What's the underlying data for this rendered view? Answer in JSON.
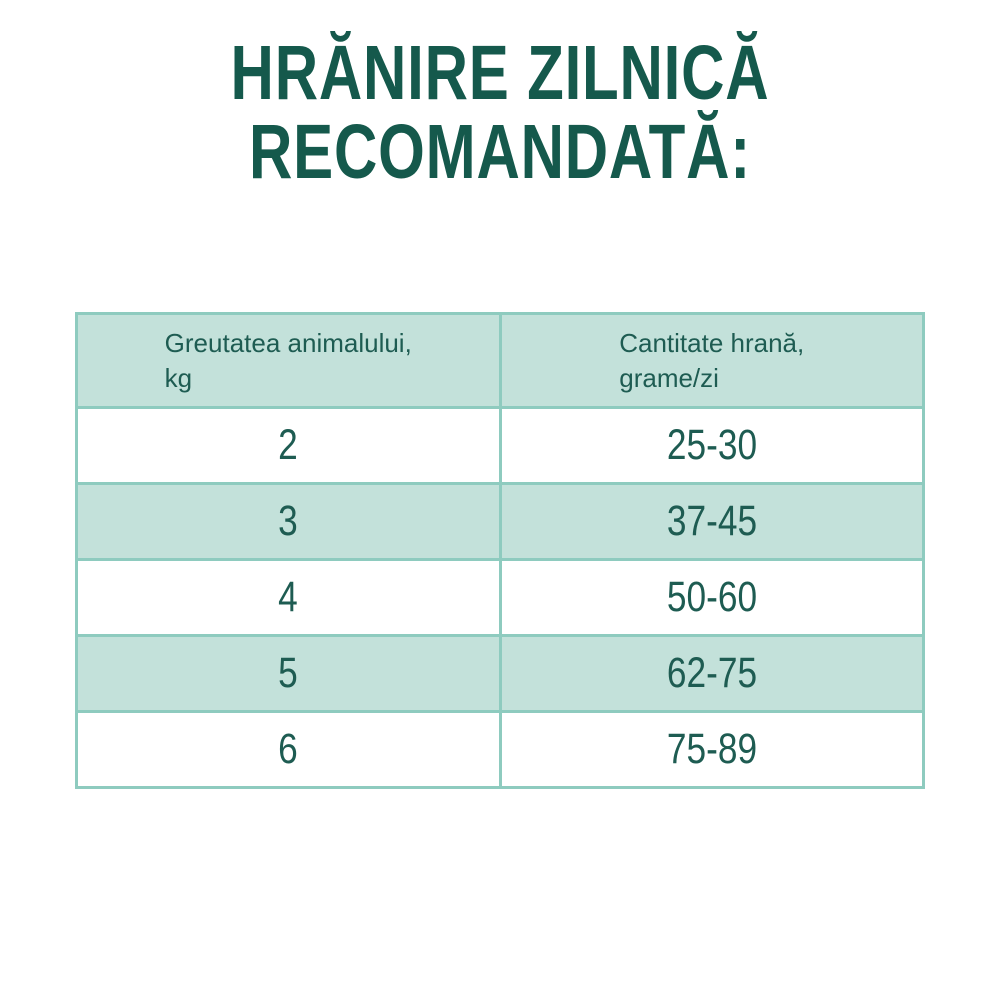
{
  "title": {
    "lines": [
      "HRĂNIRE ZILNICĂ",
      "RECOMANDATĂ:"
    ]
  },
  "table": {
    "headers": [
      {
        "line1": "Greutatea animalului,",
        "line2": "kg"
      },
      {
        "line1": "Cantitate hrană,",
        "line2": "grame/zi"
      }
    ],
    "rows": [
      [
        "2",
        "25-30"
      ],
      [
        "3",
        "37-45"
      ],
      [
        "4",
        "50-60"
      ],
      [
        "5",
        "62-75"
      ],
      [
        "6",
        "75-89"
      ]
    ]
  },
  "colors": {
    "title_text": "#15594c",
    "table_text": "#1e5c52",
    "row_fill_teal": "#c3e1da",
    "row_fill_white": "#ffffff",
    "table_border": "#8ecbbf",
    "page_background": "#ffffff"
  },
  "chart_data": {
    "type": "table",
    "title": "HRĂNIRE ZILNICĂ RECOMANDATĂ:",
    "columns": [
      "Greutatea animalului, kg",
      "Cantitate hrană, grame/zi"
    ],
    "rows": [
      {
        "greutate_kg": 2,
        "cantitate_grame_zi": "25-30"
      },
      {
        "greutate_kg": 3,
        "cantitate_grame_zi": "37-45"
      },
      {
        "greutate_kg": 4,
        "cantitate_grame_zi": "50-60"
      },
      {
        "greutate_kg": 5,
        "cantitate_grame_zi": "62-75"
      },
      {
        "greutate_kg": 6,
        "cantitate_grame_zi": "75-89"
      }
    ],
    "layout": {
      "header_background": "#c3e1da",
      "zebra_striping": true,
      "columns_equal_width": true
    }
  }
}
